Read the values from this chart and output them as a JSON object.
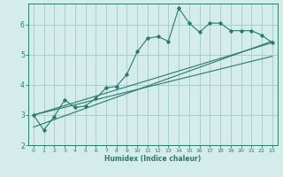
{
  "xlabel": "Humidex (Indice chaleur)",
  "background_color": "#d4ecec",
  "grid_color": "#aacece",
  "line_color": "#2a7a6a",
  "xlim": [
    -0.5,
    23.5
  ],
  "ylim": [
    2.0,
    6.7
  ],
  "yticks": [
    2,
    3,
    4,
    5,
    6
  ],
  "xticks": [
    0,
    1,
    2,
    3,
    4,
    5,
    6,
    7,
    8,
    9,
    10,
    11,
    12,
    13,
    14,
    15,
    16,
    17,
    18,
    19,
    20,
    21,
    22,
    23
  ],
  "series": [
    [
      0,
      3.0
    ],
    [
      1,
      2.5
    ],
    [
      2,
      2.95
    ],
    [
      3,
      3.5
    ],
    [
      4,
      3.25
    ],
    [
      5,
      3.3
    ],
    [
      6,
      3.55
    ],
    [
      7,
      3.9
    ],
    [
      8,
      3.95
    ],
    [
      9,
      4.35
    ],
    [
      10,
      5.1
    ],
    [
      11,
      5.55
    ],
    [
      12,
      5.6
    ],
    [
      13,
      5.45
    ],
    [
      14,
      6.55
    ],
    [
      15,
      6.05
    ],
    [
      16,
      5.75
    ],
    [
      17,
      6.05
    ],
    [
      18,
      6.05
    ],
    [
      19,
      5.8
    ],
    [
      20,
      5.8
    ],
    [
      21,
      5.8
    ],
    [
      22,
      5.65
    ],
    [
      23,
      5.4
    ]
  ],
  "linear_fits": [
    {
      "x": [
        0,
        23
      ],
      "y": [
        3.0,
        5.4
      ]
    },
    {
      "x": [
        0,
        23
      ],
      "y": [
        2.6,
        5.45
      ]
    },
    {
      "x": [
        0,
        23
      ],
      "y": [
        3.0,
        4.95
      ]
    }
  ]
}
